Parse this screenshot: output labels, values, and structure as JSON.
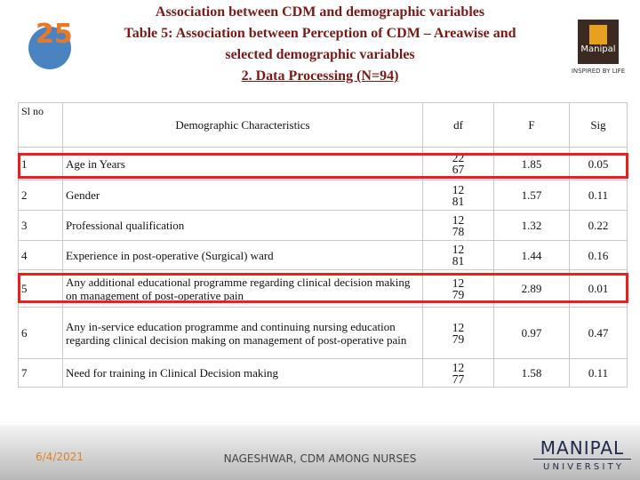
{
  "header": {
    "lines": [
      "Association between CDM and demographic variables",
      "Table 5: Association between Perception of CDM – Areawise and",
      "selected demographic variables",
      "2. Data Processing (N=94)"
    ]
  },
  "logo": {
    "name": "Manipal",
    "tagline": "INSPIRED BY LIFE"
  },
  "table": {
    "columns": [
      "Sl no",
      "Demographic Characteristics",
      "df",
      "F",
      "Sig"
    ],
    "rows": [
      [
        "1",
        "Age in Years",
        [
          "22",
          "67"
        ],
        "1.85",
        "0.05"
      ],
      [
        "2",
        "Gender",
        [
          "12",
          "81"
        ],
        "1.57",
        "0.11"
      ],
      [
        "3",
        "Professional qualification",
        [
          "12",
          "78"
        ],
        "1.32",
        "0.22"
      ],
      [
        "4",
        "Experience in post-operative (Surgical) ward",
        [
          "12",
          "81"
        ],
        "1.44",
        "0.16"
      ],
      [
        "5",
        "Any additional educational programme regarding clinical decision making on management of post-operative pain",
        [
          "12",
          "79"
        ],
        "2.89",
        "0.01"
      ],
      [
        "6",
        "Any in-service education programme and continuing nursing education regarding clinical decision making on management of post-operative pain",
        [
          "12",
          "79"
        ],
        "0.97",
        "0.47"
      ],
      [
        "7",
        "Need for training in Clinical Decision making",
        [
          "12",
          "77"
        ],
        "1.58",
        "0.11"
      ]
    ]
  },
  "footer": {
    "date": "6/4/2021",
    "text": "NAGESHWAR, CDM AMONG NURSES",
    "brand": "MANIPAL",
    "sub": "U N I V E R S I T Y"
  }
}
